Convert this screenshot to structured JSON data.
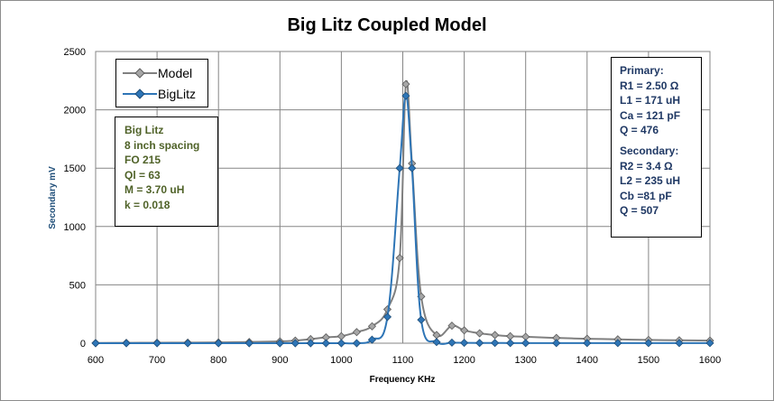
{
  "chart_data": {
    "type": "line",
    "title": "Big Litz Coupled Model",
    "xlabel": "Frequency  KHz",
    "ylabel": "Secondary  mV",
    "xlim": [
      600,
      1600
    ],
    "ylim": [
      0,
      2500
    ],
    "x_ticks": [
      "600",
      "700",
      "800",
      "900",
      "1000",
      "1100",
      "1200",
      "1300",
      "1400",
      "1500",
      "1600"
    ],
    "y_ticks": [
      "0",
      "500",
      "1000",
      "1500",
      "2000",
      "2500"
    ],
    "grid": true,
    "legend_position": "top-left",
    "series": [
      {
        "name": "Model",
        "color": "#808080",
        "marker_fill": "#a6a6a6",
        "marker": "diamond",
        "x": [
          600,
          650,
          700,
          750,
          800,
          850,
          900,
          925,
          950,
          975,
          1000,
          1025,
          1050,
          1075,
          1095,
          1105,
          1115,
          1130,
          1155,
          1180,
          1200,
          1225,
          1250,
          1275,
          1300,
          1350,
          1400,
          1450,
          1500,
          1550,
          1600
        ],
        "y": [
          2,
          3,
          4,
          5,
          7,
          10,
          15,
          22,
          35,
          50,
          60,
          95,
          145,
          290,
          730,
          2220,
          1540,
          400,
          70,
          150,
          110,
          85,
          70,
          60,
          55,
          45,
          38,
          33,
          28,
          25,
          22
        ]
      },
      {
        "name": "BigLitz",
        "color": "#2e75b6",
        "marker_fill": "#2e75b6",
        "marker": "diamond",
        "x": [
          600,
          650,
          700,
          750,
          800,
          850,
          900,
          925,
          950,
          975,
          1000,
          1025,
          1050,
          1075,
          1095,
          1105,
          1115,
          1130,
          1155,
          1180,
          1200,
          1225,
          1250,
          1275,
          1300,
          1350,
          1400,
          1450,
          1500,
          1550,
          1600
        ],
        "y": [
          0,
          0,
          0,
          0,
          0,
          0,
          0,
          0,
          0,
          0,
          0,
          0,
          30,
          225,
          1500,
          2120,
          1500,
          200,
          10,
          5,
          3,
          2,
          2,
          1,
          1,
          1,
          1,
          1,
          1,
          1,
          1
        ]
      }
    ]
  },
  "legend": {
    "items": [
      {
        "label": "Model"
      },
      {
        "label": "BigLitz"
      }
    ]
  },
  "info_box": {
    "lines": [
      "Big Litz",
      "8 inch spacing",
      "FO 215",
      "Ql = 63",
      "M = 3.70 uH",
      "k = 0.018"
    ]
  },
  "params_box": {
    "primary": [
      "Primary:",
      "R1 = 2.50 Ω",
      "L1 = 171 uH",
      "Ca = 121 pF",
      "Q = 476"
    ],
    "secondary": [
      "Secondary:",
      "R2 = 3.4 Ω",
      "L2 = 235 uH",
      "Cb =81 pF",
      "Q = 507"
    ]
  },
  "colors": {
    "ylabel": "#1f4e79",
    "info_text": "#4f6228",
    "params_text": "#1f3864",
    "grid": "#868686"
  }
}
